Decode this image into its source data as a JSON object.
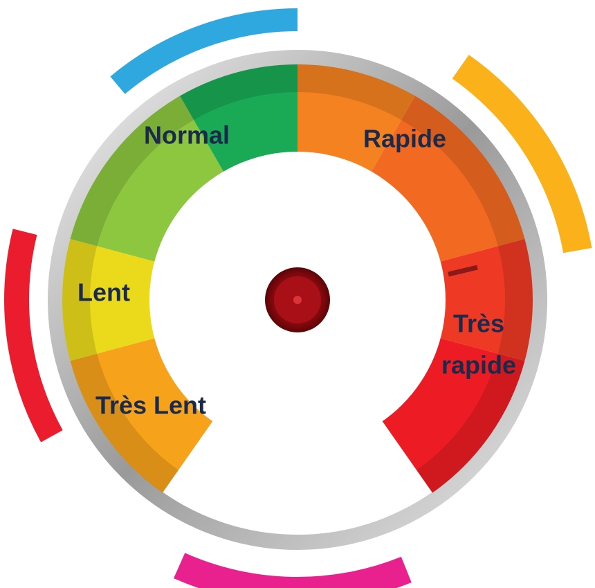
{
  "gauge": {
    "labels": [
      "Très Lent",
      "Lent",
      "Normal",
      "Rapide"
    ],
    "very_fast_label": [
      "Très",
      "rapide"
    ]
  }
}
